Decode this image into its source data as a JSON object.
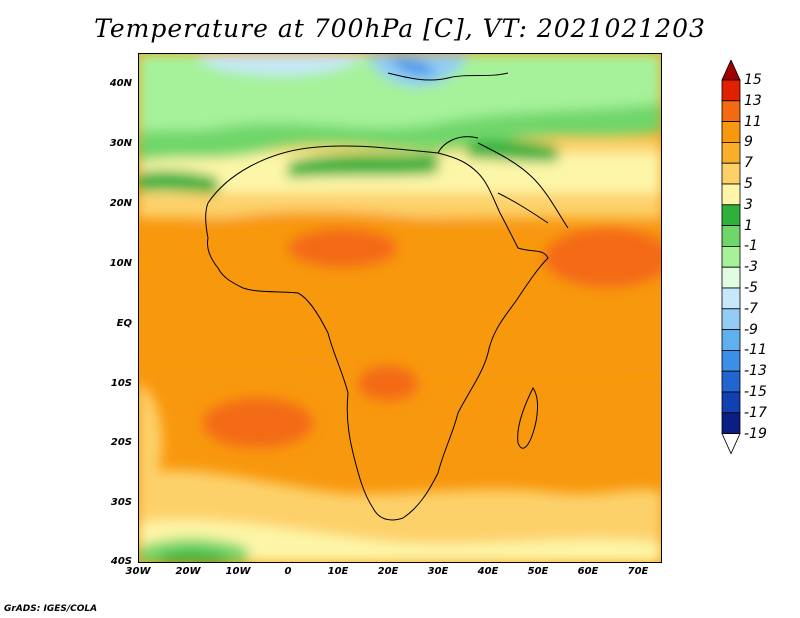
{
  "title": "Temperature at 700hPa [C], VT: 2021021203",
  "credit": "GrADS: IGES/COLA",
  "map": {
    "lon_range": [
      -30,
      75
    ],
    "lat_range": [
      -40,
      45
    ],
    "lat_ticks": [
      "40N",
      "30N",
      "20N",
      "10N",
      "EQ",
      "10S",
      "20S",
      "30S",
      "40S"
    ],
    "lon_ticks": [
      "30W",
      "20W",
      "10W",
      "0",
      "10E",
      "20E",
      "30E",
      "40E",
      "50E",
      "60E",
      "70E"
    ]
  },
  "colorbar": {
    "labels": [
      "15",
      "13",
      "11",
      "9",
      "7",
      "5",
      "3",
      "1",
      "-1",
      "-3",
      "-5",
      "-7",
      "-9",
      "-11",
      "-13",
      "-15",
      "-17",
      "-19"
    ],
    "colors": [
      "#a00000",
      "#e12000",
      "#f46a12",
      "#f8980e",
      "#fbae2c",
      "#fdd16a",
      "#fdf6a8",
      "#2fb03c",
      "#6fd66a",
      "#a6f29a",
      "#e1fde1",
      "#c7e8fb",
      "#93cdf5",
      "#5fb0ef",
      "#3d8ee6",
      "#2166d0",
      "#1140b0",
      "#0a1f86",
      "#06105a"
    ]
  }
}
